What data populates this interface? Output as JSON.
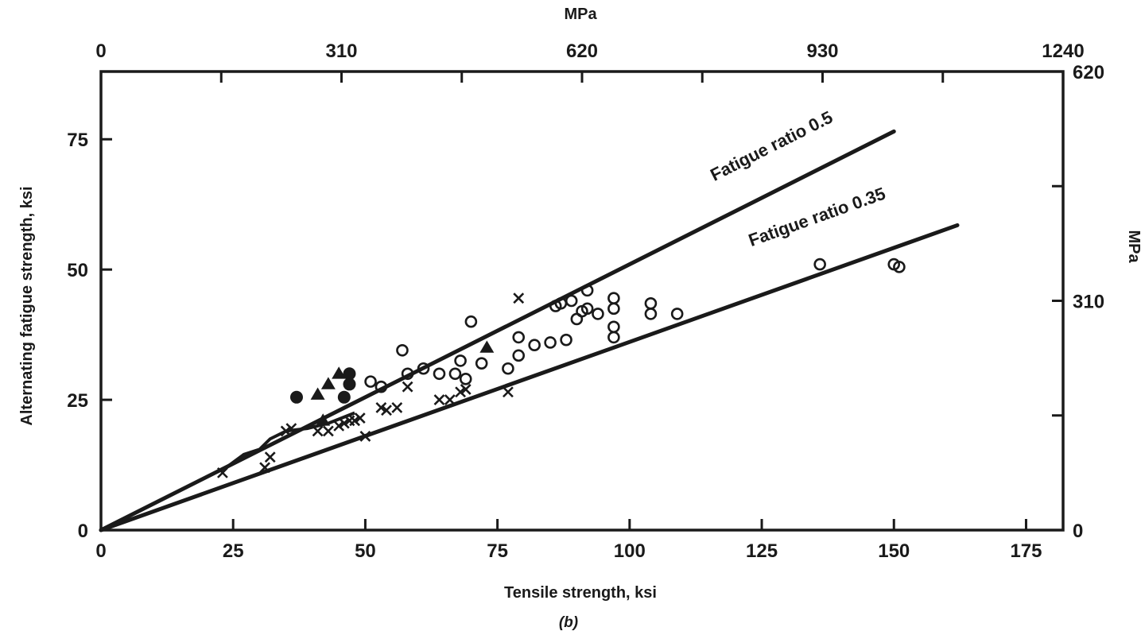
{
  "chart_data": {
    "type": "scatter",
    "title": "",
    "caption": "(b)",
    "xlabel": "Tensile strength, ksi",
    "ylabel": "Alternating fatigue strength, ksi",
    "x2label": "MPa",
    "y2label": "MPa",
    "xlim": [
      0,
      182
    ],
    "ylim": [
      0,
      88
    ],
    "x_ticks": [
      0,
      25,
      50,
      75,
      100,
      125,
      150,
      175
    ],
    "x_tick_labels": [
      "0",
      "25",
      "50",
      "75",
      "100",
      "125",
      "150",
      "175"
    ],
    "y_ticks": [
      0,
      25,
      50,
      75
    ],
    "y_tick_labels": [
      "0",
      "25",
      "50",
      "75"
    ],
    "x2_ticks": [
      0,
      310,
      620,
      930,
      1240
    ],
    "x2_tick_labels": [
      "0",
      "310",
      "620",
      "930",
      "1240"
    ],
    "y2_ticks": [
      0,
      310,
      620
    ],
    "y2_tick_labels": [
      "0",
      "310",
      "620"
    ],
    "grid": false,
    "ink_color": "#1a1a1a",
    "series": [
      {
        "marker": "open-circle",
        "values": [
          [
            51,
            28.5
          ],
          [
            53,
            27.5
          ],
          [
            57,
            34.5
          ],
          [
            58,
            30
          ],
          [
            61,
            31
          ],
          [
            64,
            30
          ],
          [
            67,
            30
          ],
          [
            68,
            32.5
          ],
          [
            69,
            29
          ],
          [
            70,
            40
          ],
          [
            72,
            32
          ],
          [
            77,
            31
          ],
          [
            79,
            33.5
          ],
          [
            79,
            37
          ],
          [
            82,
            35.5
          ],
          [
            85,
            36
          ],
          [
            86,
            43
          ],
          [
            87,
            43.5
          ],
          [
            88,
            36.5
          ],
          [
            89,
            44
          ],
          [
            90,
            40.5
          ],
          [
            91,
            42
          ],
          [
            92,
            42.5
          ],
          [
            92,
            46
          ],
          [
            94,
            41.5
          ],
          [
            97,
            44.5
          ],
          [
            97,
            42.5
          ],
          [
            97,
            39
          ],
          [
            97,
            37
          ],
          [
            104,
            43.5
          ],
          [
            104,
            41.5
          ],
          [
            109,
            41.5
          ],
          [
            136,
            51
          ],
          [
            150,
            51
          ],
          [
            151,
            50.5
          ]
        ]
      },
      {
        "marker": "filled-circle",
        "values": [
          [
            37,
            25.5
          ],
          [
            46,
            25.5
          ],
          [
            47,
            30
          ],
          [
            47,
            28
          ]
        ]
      },
      {
        "marker": "triangle",
        "values": [
          [
            41,
            26
          ],
          [
            42,
            21
          ],
          [
            43,
            28
          ],
          [
            45,
            30
          ],
          [
            73,
            35
          ]
        ]
      },
      {
        "marker": "cross",
        "values": [
          [
            23,
            11
          ],
          [
            31,
            12
          ],
          [
            32,
            14
          ],
          [
            35,
            19
          ],
          [
            36,
            19.5
          ],
          [
            41,
            19
          ],
          [
            43,
            19
          ],
          [
            45,
            20
          ],
          [
            46,
            20.5
          ],
          [
            47,
            21
          ],
          [
            48,
            21
          ],
          [
            49,
            21.5
          ],
          [
            50,
            18
          ],
          [
            53,
            23.5
          ],
          [
            54,
            23
          ],
          [
            56,
            23.5
          ],
          [
            58,
            27.5
          ],
          [
            64,
            25
          ],
          [
            66,
            25
          ],
          [
            68,
            26.5
          ],
          [
            69,
            27
          ],
          [
            77,
            26.5
          ],
          [
            79,
            44.5
          ]
        ]
      }
    ],
    "lines": [
      {
        "label": "Fatigue ratio 0.5",
        "points": [
          [
            0,
            0
          ],
          [
            150,
            76.5
          ]
        ]
      },
      {
        "label": "Fatigue ratio 0.35",
        "points": [
          [
            0,
            0
          ],
          [
            162,
            58.5
          ]
        ]
      }
    ],
    "curve": {
      "points": [
        [
          23,
          11.5
        ],
        [
          27,
          14.5
        ],
        [
          30,
          15.5
        ],
        [
          32,
          17.5
        ],
        [
          35,
          19
        ],
        [
          39,
          19.5
        ],
        [
          43,
          20.5
        ],
        [
          48,
          22.5
        ]
      ]
    }
  }
}
